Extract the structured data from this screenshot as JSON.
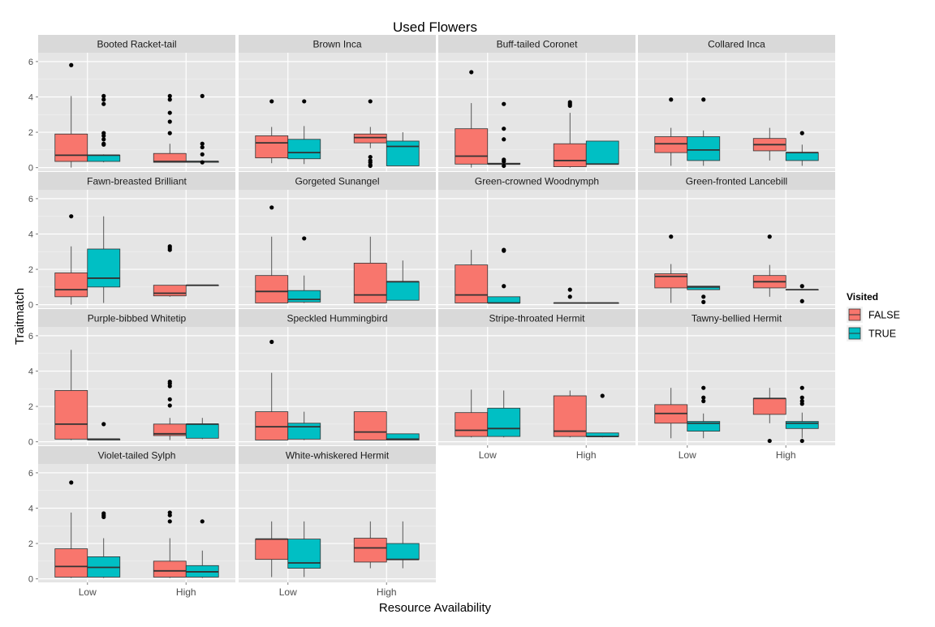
{
  "chart_data": {
    "type": "box",
    "title": "Used Flowers",
    "xlabel": "Resource Availability",
    "ylabel": "Traitmatch",
    "categories": [
      "Low",
      "High"
    ],
    "y_ticks": [
      0,
      2,
      4,
      6
    ],
    "ylim": [
      -0.2,
      6.5
    ],
    "grid": true,
    "facet_layout": "wrap 4 columns",
    "legend": {
      "title": "Visited",
      "position": "right",
      "entries": [
        {
          "label": "FALSE",
          "color": "#F8766D"
        },
        {
          "label": "TRUE",
          "color": "#00BFC4"
        }
      ]
    },
    "stat_keys": [
      "ymin",
      "q1",
      "median",
      "q3",
      "ymax",
      "outliers"
    ],
    "panels": [
      {
        "title": "Booted Racket-tail",
        "groups": [
          {
            "availability": "Low",
            "visited": "FALSE",
            "stats": [
              0,
              0.35,
              0.7,
              1.9,
              4.05,
              [
                5.8
              ]
            ]
          },
          {
            "availability": "Low",
            "visited": "TRUE",
            "stats": [
              0.3,
              0.35,
              0.7,
              0.7,
              0.75,
              [
                4.05,
                3.85,
                3.6,
                1.95,
                1.8,
                1.6,
                1.35,
                1.3
              ]
            ]
          },
          {
            "availability": "High",
            "visited": "FALSE",
            "stats": [
              0.3,
              0.3,
              0.35,
              0.8,
              1.35,
              [
                4.05,
                3.85,
                3.1,
                2.6,
                1.95
              ]
            ]
          },
          {
            "availability": "High",
            "visited": "TRUE",
            "stats": [
              0.3,
              0.3,
              0.35,
              0.35,
              0.35,
              [
                4.05,
                1.35,
                1.15,
                0.75,
                0.3
              ]
            ]
          }
        ]
      },
      {
        "title": "Brown Inca",
        "groups": [
          {
            "availability": "Low",
            "visited": "FALSE",
            "stats": [
              0.25,
              0.55,
              1.4,
              1.8,
              2.3,
              [
                3.75
              ]
            ]
          },
          {
            "availability": "Low",
            "visited": "TRUE",
            "stats": [
              0.2,
              0.5,
              0.85,
              1.6,
              2.35,
              [
                3.75
              ]
            ]
          },
          {
            "availability": "High",
            "visited": "FALSE",
            "stats": [
              1.1,
              1.4,
              1.7,
              1.9,
              2.3,
              [
                3.75,
                0.6,
                0.4,
                0.3,
                0.15,
                0.1
              ]
            ]
          },
          {
            "availability": "High",
            "visited": "TRUE",
            "stats": [
              0.1,
              0.1,
              1.2,
              1.5,
              2.0,
              []
            ]
          }
        ]
      },
      {
        "title": "Buff-tailed Coronet",
        "groups": [
          {
            "availability": "Low",
            "visited": "FALSE",
            "stats": [
              0,
              0.2,
              0.65,
              2.2,
              3.65,
              [
                5.4
              ]
            ]
          },
          {
            "availability": "Low",
            "visited": "TRUE",
            "stats": [
              0.15,
              0.2,
              0.2,
              0.25,
              0.3,
              [
                3.6,
                2.2,
                1.6,
                0.45,
                0.35,
                0.1
              ]
            ]
          },
          {
            "availability": "High",
            "visited": "FALSE",
            "stats": [
              0,
              0.05,
              0.4,
              1.35,
              3.1,
              [
                3.7,
                3.6,
                3.5
              ]
            ]
          },
          {
            "availability": "High",
            "visited": "TRUE",
            "stats": [
              0.2,
              0.2,
              0.2,
              1.5,
              1.5,
              []
            ]
          }
        ]
      },
      {
        "title": "Collared Inca",
        "groups": [
          {
            "availability": "Low",
            "visited": "FALSE",
            "stats": [
              0.1,
              0.85,
              1.35,
              1.75,
              2.25,
              [
                3.85
              ]
            ]
          },
          {
            "availability": "Low",
            "visited": "TRUE",
            "stats": [
              0.1,
              0.4,
              1.0,
              1.75,
              2.1,
              [
                3.85
              ]
            ]
          },
          {
            "availability": "High",
            "visited": "FALSE",
            "stats": [
              0.4,
              0.95,
              1.3,
              1.65,
              2.25,
              []
            ]
          },
          {
            "availability": "High",
            "visited": "TRUE",
            "stats": [
              0.1,
              0.4,
              0.85,
              0.85,
              1.3,
              [
                1.95
              ]
            ]
          }
        ]
      },
      {
        "title": "Fawn-breasted Brilliant",
        "groups": [
          {
            "availability": "Low",
            "visited": "FALSE",
            "stats": [
              0,
              0.45,
              0.85,
              1.8,
              3.3,
              [
                5.0
              ]
            ]
          },
          {
            "availability": "Low",
            "visited": "TRUE",
            "stats": [
              0.1,
              1.0,
              1.5,
              3.15,
              5.0,
              []
            ]
          },
          {
            "availability": "High",
            "visited": "FALSE",
            "stats": [
              0.45,
              0.5,
              0.65,
              1.1,
              1.1,
              [
                3.3,
                3.2,
                3.1
              ]
            ]
          },
          {
            "availability": "High",
            "visited": "TRUE",
            "stats": [
              1.1,
              1.1,
              1.1,
              1.1,
              1.1,
              []
            ]
          }
        ]
      },
      {
        "title": "Gorgeted Sunangel",
        "groups": [
          {
            "availability": "Low",
            "visited": "FALSE",
            "stats": [
              0.1,
              0.1,
              0.75,
              1.65,
              3.85,
              [
                5.5
              ]
            ]
          },
          {
            "availability": "Low",
            "visited": "TRUE",
            "stats": [
              0.1,
              0.15,
              0.3,
              0.8,
              1.65,
              [
                3.75
              ]
            ]
          },
          {
            "availability": "High",
            "visited": "FALSE",
            "stats": [
              0.1,
              0.1,
              0.55,
              2.35,
              3.85,
              []
            ]
          },
          {
            "availability": "High",
            "visited": "TRUE",
            "stats": [
              0.25,
              0.25,
              1.3,
              1.3,
              2.5,
              []
            ]
          }
        ]
      },
      {
        "title": "Green-crowned Woodnymph",
        "groups": [
          {
            "availability": "Low",
            "visited": "FALSE",
            "stats": [
              0.1,
              0.1,
              0.55,
              2.25,
              3.1,
              []
            ]
          },
          {
            "availability": "Low",
            "visited": "TRUE",
            "stats": [
              0.1,
              0.1,
              0.1,
              0.45,
              0.45,
              [
                3.1,
                3.05,
                1.05
              ]
            ]
          },
          {
            "availability": "High",
            "visited": "FALSE",
            "stats": [
              0.1,
              0.1,
              0.1,
              0.1,
              0.1,
              [
                0.85,
                0.45
              ]
            ]
          },
          {
            "availability": "High",
            "visited": "TRUE",
            "stats": [
              0.1,
              0.1,
              0.1,
              0.1,
              0.1,
              []
            ]
          }
        ]
      },
      {
        "title": "Green-fronted Lancebill",
        "groups": [
          {
            "availability": "Low",
            "visited": "FALSE",
            "stats": [
              0.1,
              0.95,
              1.6,
              1.75,
              2.3,
              [
                3.85
              ]
            ]
          },
          {
            "availability": "Low",
            "visited": "TRUE",
            "stats": [
              0.85,
              0.85,
              1.0,
              1.05,
              1.05,
              [
                0.45,
                0.15
              ]
            ]
          },
          {
            "availability": "High",
            "visited": "FALSE",
            "stats": [
              0.45,
              0.95,
              1.3,
              1.65,
              2.25,
              [
                3.85
              ]
            ]
          },
          {
            "availability": "High",
            "visited": "TRUE",
            "stats": [
              0.85,
              0.85,
              0.85,
              0.85,
              0.85,
              [
                1.05,
                0.2
              ]
            ]
          }
        ]
      },
      {
        "title": "Purple-bibbed Whitetip",
        "groups": [
          {
            "availability": "Low",
            "visited": "FALSE",
            "stats": [
              0.1,
              0.15,
              1.0,
              2.9,
              5.2,
              []
            ]
          },
          {
            "availability": "Low",
            "visited": "TRUE",
            "stats": [
              0.1,
              0.1,
              0.15,
              0.15,
              0.15,
              [
                1.0
              ]
            ]
          },
          {
            "availability": "High",
            "visited": "FALSE",
            "stats": [
              0.1,
              0.35,
              0.45,
              1.0,
              1.35,
              [
                3.4,
                3.3,
                3.15,
                2.4,
                2.05
              ]
            ]
          },
          {
            "availability": "High",
            "visited": "TRUE",
            "stats": [
              0.15,
              0.2,
              1.0,
              1.0,
              1.35,
              []
            ]
          }
        ]
      },
      {
        "title": "Speckled Hummingbird",
        "groups": [
          {
            "availability": "Low",
            "visited": "FALSE",
            "stats": [
              0.1,
              0.1,
              0.85,
              1.7,
              3.9,
              [
                5.65
              ]
            ]
          },
          {
            "availability": "Low",
            "visited": "TRUE",
            "stats": [
              0.1,
              0.15,
              0.85,
              1.05,
              1.7,
              []
            ]
          },
          {
            "availability": "High",
            "visited": "FALSE",
            "stats": [
              0.1,
              0.1,
              0.55,
              1.7,
              1.7,
              []
            ]
          },
          {
            "availability": "High",
            "visited": "TRUE",
            "stats": [
              0.1,
              0.1,
              0.15,
              0.45,
              0.45,
              []
            ]
          }
        ]
      },
      {
        "title": "Stripe-throated Hermit",
        "groups": [
          {
            "availability": "Low",
            "visited": "FALSE",
            "stats": [
              0.25,
              0.3,
              0.65,
              1.65,
              2.95,
              []
            ]
          },
          {
            "availability": "Low",
            "visited": "TRUE",
            "stats": [
              0.25,
              0.3,
              0.75,
              1.9,
              2.9,
              []
            ]
          },
          {
            "availability": "High",
            "visited": "FALSE",
            "stats": [
              0.25,
              0.3,
              0.6,
              2.6,
              2.9,
              []
            ]
          },
          {
            "availability": "High",
            "visited": "TRUE",
            "stats": [
              0.25,
              0.3,
              0.3,
              0.5,
              0.5,
              [
                2.6
              ]
            ]
          }
        ]
      },
      {
        "title": "Tawny-bellied Hermit",
        "groups": [
          {
            "availability": "Low",
            "visited": "FALSE",
            "stats": [
              0.2,
              1.05,
              1.6,
              2.1,
              3.05,
              []
            ]
          },
          {
            "availability": "Low",
            "visited": "TRUE",
            "stats": [
              0.2,
              0.6,
              1.05,
              1.15,
              1.6,
              [
                3.05,
                2.5,
                2.3
              ]
            ]
          },
          {
            "availability": "High",
            "visited": "FALSE",
            "stats": [
              1.05,
              1.55,
              2.45,
              2.45,
              3.05,
              [
                0.05
              ]
            ]
          },
          {
            "availability": "High",
            "visited": "TRUE",
            "stats": [
              0.2,
              0.75,
              1.05,
              1.15,
              1.65,
              [
                3.05,
                2.5,
                2.3,
                2.15,
                0.05
              ]
            ]
          }
        ]
      },
      {
        "title": "Violet-tailed Sylph",
        "groups": [
          {
            "availability": "Low",
            "visited": "FALSE",
            "stats": [
              0.05,
              0.1,
              0.7,
              1.7,
              3.75,
              [
                5.45
              ]
            ]
          },
          {
            "availability": "Low",
            "visited": "TRUE",
            "stats": [
              0.05,
              0.1,
              0.65,
              1.25,
              2.3,
              [
                3.7,
                3.6,
                3.5
              ]
            ]
          },
          {
            "availability": "High",
            "visited": "FALSE",
            "stats": [
              0.05,
              0.1,
              0.45,
              1.0,
              2.3,
              [
                3.75,
                3.6,
                3.25
              ]
            ]
          },
          {
            "availability": "High",
            "visited": "TRUE",
            "stats": [
              0.05,
              0.1,
              0.4,
              0.75,
              1.6,
              [
                3.25
              ]
            ]
          }
        ]
      },
      {
        "title": "White-whiskered Hermit",
        "groups": [
          {
            "availability": "Low",
            "visited": "FALSE",
            "stats": [
              0.1,
              1.1,
              2.25,
              2.25,
              3.25,
              []
            ]
          },
          {
            "availability": "Low",
            "visited": "TRUE",
            "stats": [
              0.1,
              0.6,
              0.9,
              2.25,
              3.25,
              []
            ]
          },
          {
            "availability": "High",
            "visited": "FALSE",
            "stats": [
              0.6,
              0.95,
              1.75,
              2.3,
              3.25,
              []
            ]
          },
          {
            "availability": "High",
            "visited": "TRUE",
            "stats": [
              0.6,
              1.1,
              1.1,
              2.0,
              3.25,
              []
            ]
          }
        ]
      }
    ]
  }
}
